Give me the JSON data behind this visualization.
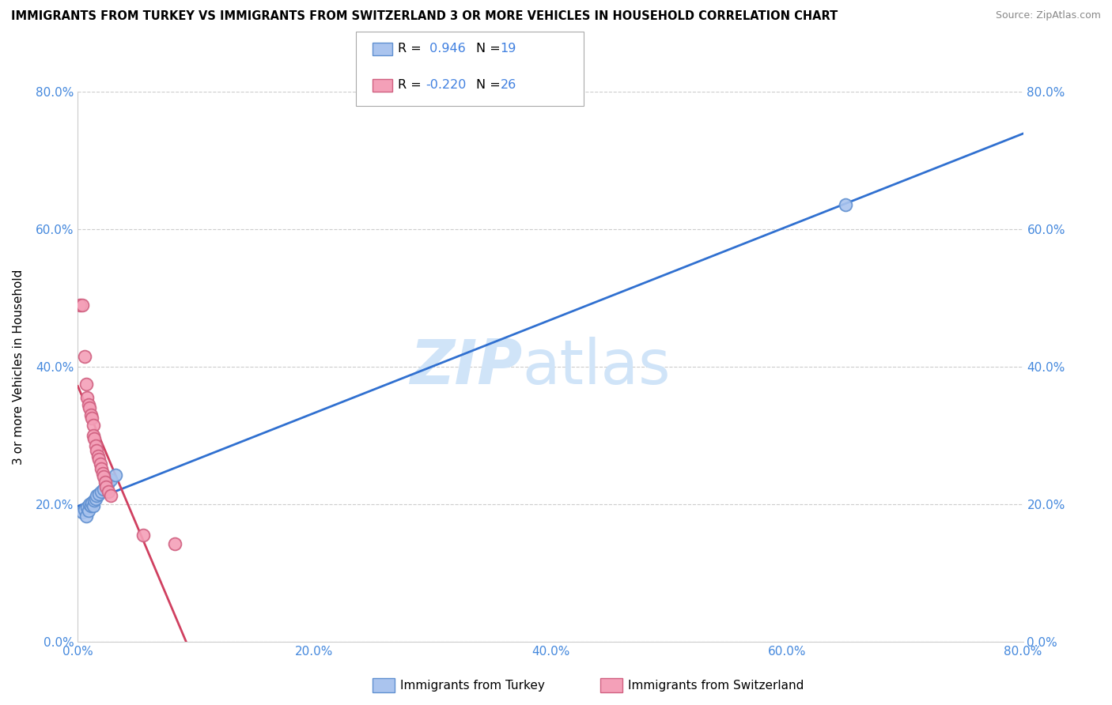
{
  "title": "IMMIGRANTS FROM TURKEY VS IMMIGRANTS FROM SWITZERLAND 3 OR MORE VEHICLES IN HOUSEHOLD CORRELATION CHART",
  "source": "Source: ZipAtlas.com",
  "ylabel": "3 or more Vehicles in Household",
  "xlim": [
    0.0,
    0.8
  ],
  "ylim": [
    0.0,
    0.8
  ],
  "xtick_labels": [
    "0.0%",
    "20.0%",
    "40.0%",
    "60.0%",
    "80.0%"
  ],
  "ytick_labels": [
    "0.0%",
    "20.0%",
    "40.0%",
    "60.0%",
    "80.0%"
  ],
  "xtick_vals": [
    0.0,
    0.2,
    0.4,
    0.6,
    0.8
  ],
  "ytick_vals": [
    0.0,
    0.2,
    0.4,
    0.6,
    0.8
  ],
  "turkey_color": "#aac4ee",
  "switzerland_color": "#f4a0b8",
  "turkey_edge": "#6090d0",
  "switzerland_edge": "#d06080",
  "line_turkey_color": "#3070d0",
  "line_switzerland_color": "#d04060",
  "watermark_zip": "ZIP",
  "watermark_atlas": "atlas",
  "watermark_color": "#d0e4f8",
  "turkey_r": 0.946,
  "turkey_n": 19,
  "switzerland_r": -0.22,
  "switzerland_n": 26,
  "turkey_points": [
    [
      0.004,
      0.188
    ],
    [
      0.006,
      0.192
    ],
    [
      0.007,
      0.183
    ],
    [
      0.008,
      0.195
    ],
    [
      0.009,
      0.19
    ],
    [
      0.01,
      0.2
    ],
    [
      0.011,
      0.197
    ],
    [
      0.012,
      0.202
    ],
    [
      0.013,
      0.198
    ],
    [
      0.014,
      0.205
    ],
    [
      0.015,
      0.208
    ],
    [
      0.016,
      0.212
    ],
    [
      0.018,
      0.215
    ],
    [
      0.02,
      0.218
    ],
    [
      0.022,
      0.222
    ],
    [
      0.025,
      0.228
    ],
    [
      0.028,
      0.235
    ],
    [
      0.032,
      0.242
    ],
    [
      0.65,
      0.635
    ]
  ],
  "switzerland_points": [
    [
      0.002,
      0.49
    ],
    [
      0.004,
      0.49
    ],
    [
      0.006,
      0.415
    ],
    [
      0.007,
      0.375
    ],
    [
      0.008,
      0.355
    ],
    [
      0.009,
      0.345
    ],
    [
      0.01,
      0.34
    ],
    [
      0.011,
      0.33
    ],
    [
      0.012,
      0.325
    ],
    [
      0.013,
      0.315
    ],
    [
      0.013,
      0.3
    ],
    [
      0.014,
      0.295
    ],
    [
      0.015,
      0.285
    ],
    [
      0.016,
      0.278
    ],
    [
      0.017,
      0.27
    ],
    [
      0.018,
      0.265
    ],
    [
      0.019,
      0.258
    ],
    [
      0.02,
      0.252
    ],
    [
      0.021,
      0.245
    ],
    [
      0.022,
      0.24
    ],
    [
      0.023,
      0.232
    ],
    [
      0.024,
      0.225
    ],
    [
      0.026,
      0.218
    ],
    [
      0.028,
      0.212
    ],
    [
      0.055,
      0.155
    ],
    [
      0.082,
      0.142
    ]
  ],
  "legend_r1_color": "#4080e0",
  "legend_r2_color": "#4080e0"
}
